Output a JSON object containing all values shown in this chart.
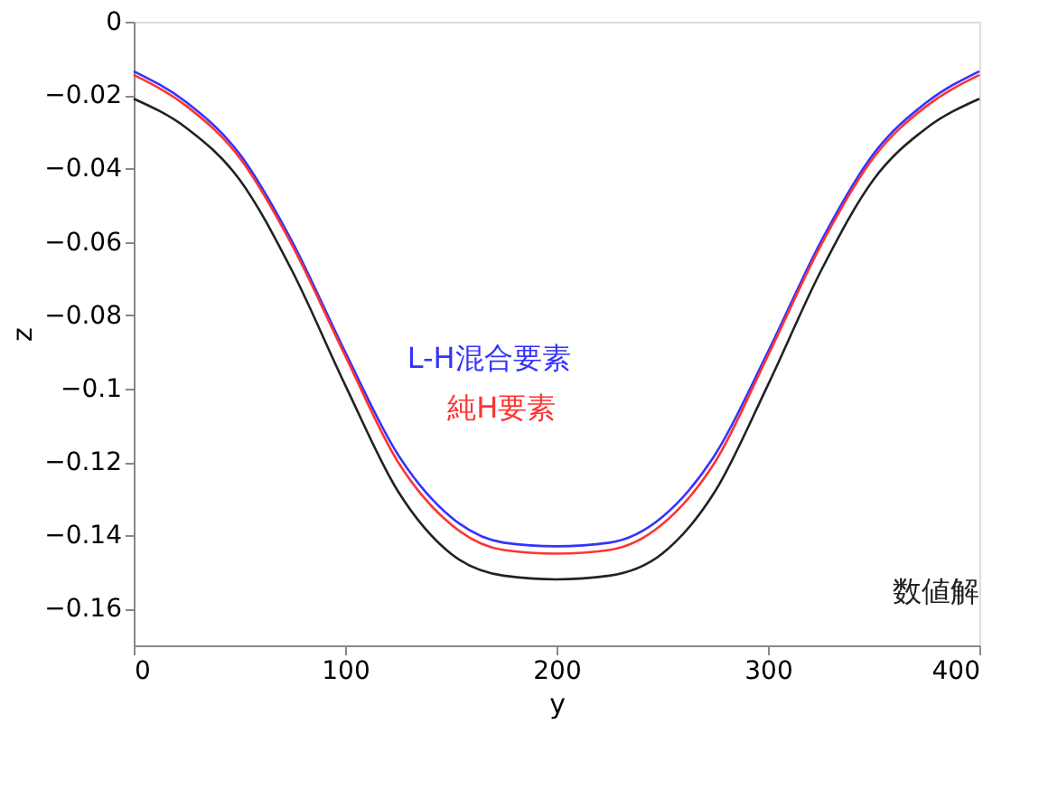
{
  "chart_data": {
    "type": "line",
    "xlabel": "y",
    "ylabel": "z",
    "x": [
      0,
      25,
      50,
      75,
      100,
      125,
      150,
      175,
      200,
      225,
      250,
      275,
      300,
      325,
      350,
      375,
      400
    ],
    "series": [
      {
        "name": "L-H混合要素",
        "color": "#3333ff",
        "values": [
          -0.0135,
          -0.022,
          -0.036,
          -0.06,
          -0.09,
          -0.118,
          -0.135,
          -0.142,
          -0.143,
          -0.142,
          -0.135,
          -0.118,
          -0.09,
          -0.06,
          -0.036,
          -0.022,
          -0.0135
        ]
      },
      {
        "name": "純H要素",
        "color": "#ff3333",
        "values": [
          -0.0145,
          -0.023,
          -0.037,
          -0.061,
          -0.091,
          -0.12,
          -0.137,
          -0.144,
          -0.145,
          -0.144,
          -0.137,
          -0.12,
          -0.091,
          -0.061,
          -0.037,
          -0.023,
          -0.0145
        ]
      },
      {
        "name": "数値解",
        "color": "#222222",
        "values": [
          -0.021,
          -0.029,
          -0.043,
          -0.068,
          -0.099,
          -0.128,
          -0.145,
          -0.151,
          -0.152,
          -0.151,
          -0.145,
          -0.128,
          -0.099,
          -0.068,
          -0.043,
          -0.029,
          -0.021
        ]
      }
    ],
    "xlim": [
      0,
      400
    ],
    "xticks": [
      0,
      100,
      200,
      300,
      400
    ],
    "ylim": [
      -0.17,
      0
    ],
    "yticks": [
      -0.16,
      -0.14,
      -0.12,
      -0.1,
      -0.08,
      -0.06,
      -0.04,
      -0.02,
      0
    ],
    "grid": false,
    "legend": false,
    "marker": "none",
    "line_style": "solid"
  }
}
